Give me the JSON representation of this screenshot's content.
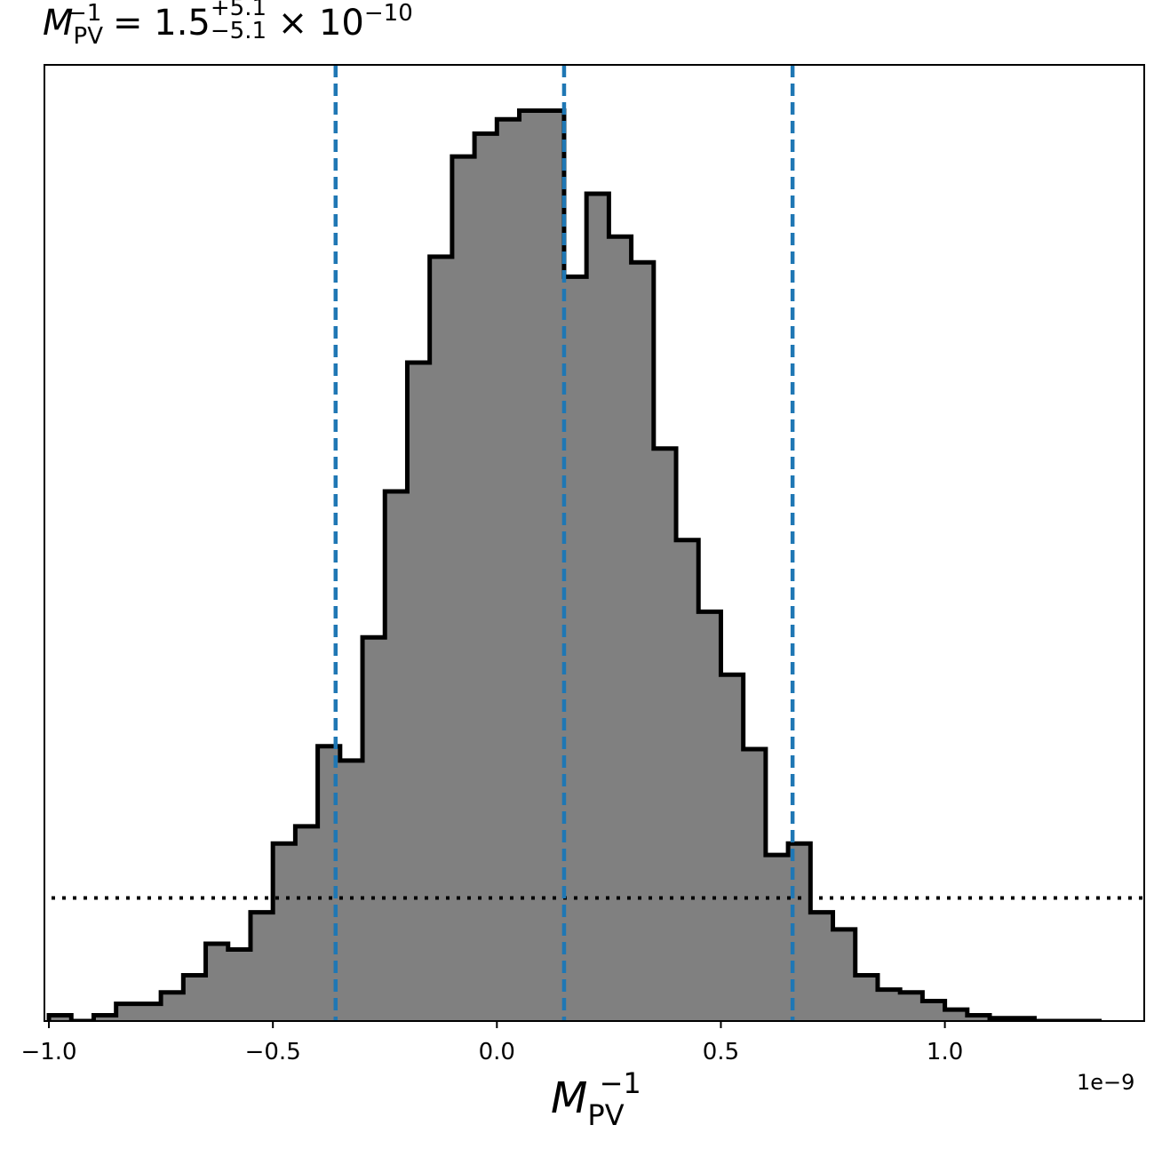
{
  "title": {
    "symbol": "M",
    "sub": "PV",
    "sup": "−1",
    "equals": " = 1.5",
    "upper": "+5.1",
    "lower": "−5.1",
    "times": "× 10",
    "exp": "−10"
  },
  "xlabel": {
    "symbol": "M",
    "sub": "PV",
    "sup": "−1"
  },
  "offset_text": "1e−9",
  "chart_data": {
    "type": "histogram",
    "bin_start": -1.0,
    "bin_width": 0.05,
    "counts": [
      2,
      0,
      2,
      6,
      6,
      10,
      16,
      27,
      25,
      38,
      62,
      68,
      96,
      91,
      134,
      185,
      230,
      267,
      302,
      310,
      315,
      318,
      318,
      260,
      289,
      274,
      265,
      200,
      168,
      143,
      121,
      95,
      58,
      62,
      38,
      32,
      16,
      11,
      10,
      7,
      4,
      2,
      1,
      1,
      0,
      0,
      0
    ],
    "hist_color": "#808080",
    "edge_color": "#000000",
    "vlines": [
      -0.36,
      0.15,
      0.66
    ],
    "vline_color": "#1f77b4",
    "hline_y": 43,
    "xlim": [
      -1.01,
      1.445
    ],
    "ylim": [
      0,
      334
    ],
    "xticks": [
      -1.0,
      -0.5,
      0.0,
      0.5,
      1.0
    ],
    "xtick_labels": [
      "−1.0",
      "−0.5",
      "0.0",
      "0.5",
      "1.0"
    ],
    "yticks": []
  }
}
